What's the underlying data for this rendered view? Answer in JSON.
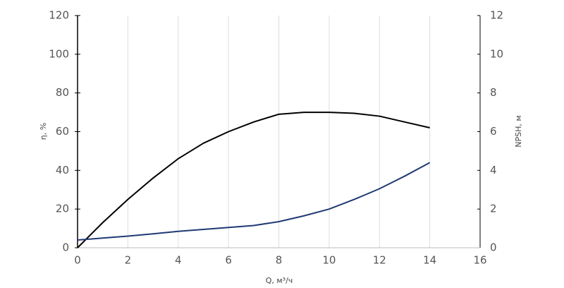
{
  "chart_data": {
    "type": "line",
    "x_label": "Q, м³/ч",
    "y_label": "η, %",
    "y2_label": "NPSH, м",
    "x": [
      0,
      1,
      2,
      3,
      4,
      5,
      6,
      7,
      8,
      9,
      10,
      11,
      12,
      13,
      14
    ],
    "series": [
      {
        "color": "#000000",
        "values": [
          0,
          13,
          25,
          36,
          46,
          54,
          60,
          65,
          69,
          70,
          70,
          69.5,
          68,
          65,
          62
        ]
      },
      {
        "color": "#1f3a73",
        "axis": "y2",
        "values": [
          0.4,
          0.5,
          0.6,
          0.72,
          0.85,
          0.95,
          1.05,
          1.15,
          1.35,
          1.65,
          2.0,
          2.5,
          3.05,
          3.7,
          4.4
        ]
      }
    ],
    "xlim": [
      0,
      16
    ],
    "xticks": [
      0,
      2,
      4,
      6,
      8,
      10,
      12,
      14,
      16
    ],
    "ylim": [
      0,
      120
    ],
    "yticks": [
      0,
      20,
      40,
      60,
      80,
      100,
      120
    ],
    "y2lim": [
      0,
      12
    ],
    "y2ticks": [
      0,
      2,
      4,
      6,
      8,
      10,
      12
    ],
    "grid": true
  }
}
